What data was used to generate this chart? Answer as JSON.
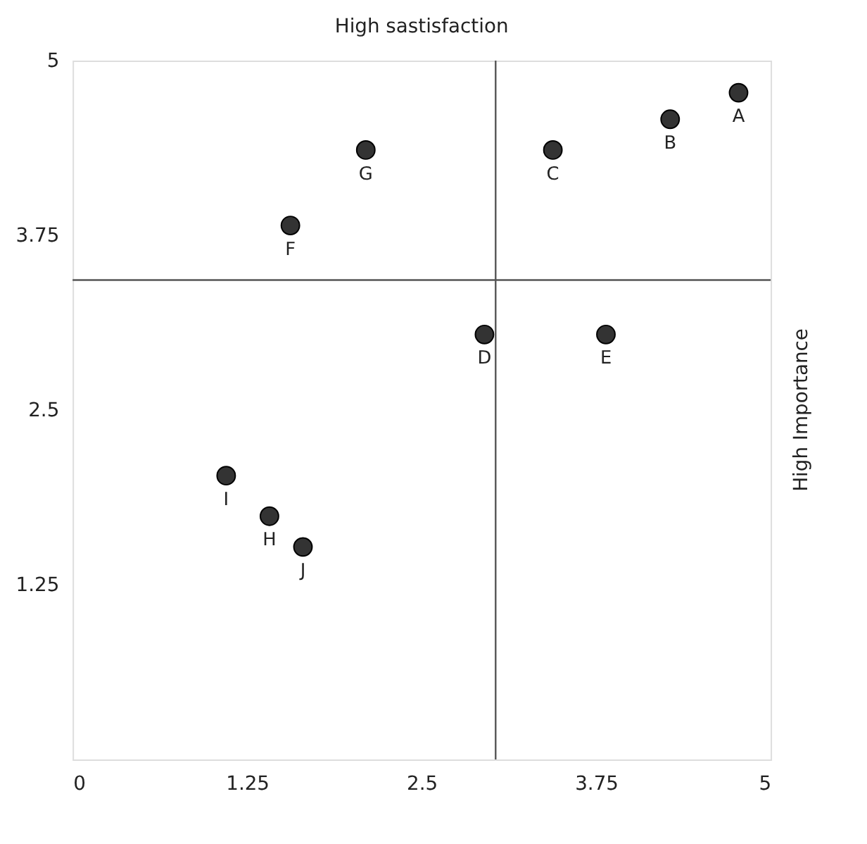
{
  "chart_data": {
    "type": "scatter",
    "title": "High sastisfaction",
    "x": [
      4.77,
      4.28,
      3.44,
      2.95,
      3.82,
      1.56,
      2.1,
      1.41,
      1.1,
      1.65
    ],
    "series": [
      {
        "color": "#333333",
        "values": [
          4.77,
          4.58,
          4.36,
          3.04,
          3.04,
          3.82,
          4.36,
          1.74,
          2.03,
          1.52
        ]
      }
    ],
    "annotations": [
      {
        "text": "A",
        "x": 4.77,
        "y": 4.77
      },
      {
        "text": "B",
        "x": 4.28,
        "y": 4.58
      },
      {
        "text": "C",
        "x": 3.44,
        "y": 4.36
      },
      {
        "text": "D",
        "x": 2.95,
        "y": 3.04
      },
      {
        "text": "E",
        "x": 3.82,
        "y": 3.04
      },
      {
        "text": "F",
        "x": 1.56,
        "y": 3.82
      },
      {
        "text": "G",
        "x": 2.1,
        "y": 4.36
      },
      {
        "text": "H",
        "x": 1.41,
        "y": 1.74
      },
      {
        "text": "I",
        "x": 1.1,
        "y": 2.03
      },
      {
        "text": "J",
        "x": 1.65,
        "y": 1.52
      },
      "High Importance"
    ],
    "xlim": [
      0,
      5
    ],
    "xticks": [
      0,
      1.25,
      2.5,
      3.75,
      5
    ],
    "ylim": [
      0,
      5
    ],
    "yticks": [
      1.25,
      2.5,
      3.75,
      5
    ],
    "ref_lines": [
      {
        "axis": "x",
        "value": 3.03,
        "color": "#555555"
      },
      {
        "axis": "y",
        "value": 3.43,
        "color": "#555555"
      }
    ],
    "marker": "circle",
    "grid": false
  }
}
